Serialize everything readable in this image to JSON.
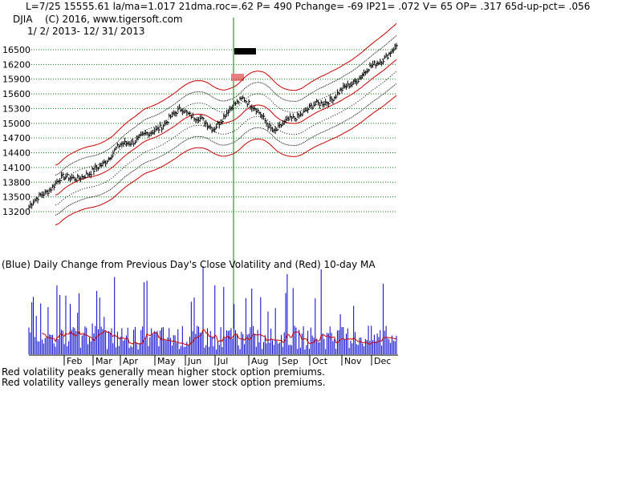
{
  "header": {
    "stats_line": "L=7/25   15555.61   la/ma=1.017  21dma.roc=.62  P=   490  Pchange=  -69  IP21=  .072  V=  65  OP=  .317  65d-up-pct=  .056",
    "symbol": "DJIA",
    "copyright": "(C) 2016,  www.tigersoft.com",
    "date_range": "1/ 2/ 2013-  12/ 31/ 2013"
  },
  "volatility_panel": {
    "title": "(Blue) Daily Change from Previous Day's Close Volatility and (Red) 10-day MA"
  },
  "notes": {
    "line1": "Red volatility peaks generally mean higher stock option premiums.",
    "line2": "Red volatility valleys generally mean lower stock option premiums."
  },
  "colors": {
    "price_bars": "#000000",
    "bands_outer": "#cc0000",
    "bands_inner": "#000000",
    "gridlines": "#008000",
    "signal_line": "#008000",
    "volatility_bars": "#0000cc",
    "volatility_ma": "#cc0000"
  },
  "chart_data": [
    {
      "type": "bar",
      "subtype": "ohlc-price",
      "title": "DJIA",
      "y_ticks": [
        13200,
        13500,
        13800,
        14100,
        14400,
        14700,
        15000,
        15300,
        15600,
        15900,
        16200,
        16500
      ],
      "ylim": [
        13000,
        16650
      ],
      "grid": true,
      "x_months": [
        "Feb",
        "Mar",
        "Apr",
        "May",
        "Jun",
        "Jul",
        "Aug",
        "Sep",
        "Oct",
        "Nov",
        "Dec"
      ],
      "signal_date": "7/25",
      "signal_value": 15555.61,
      "closes_approx": [
        {
          "month": "Jan-start",
          "value": 13300
        },
        {
          "month": "Jan-end",
          "value": 13860
        },
        {
          "month": "Feb",
          "value": 13950
        },
        {
          "month": "Mar",
          "value": 14550
        },
        {
          "month": "Apr",
          "value": 14800
        },
        {
          "month": "May",
          "value": 15300
        },
        {
          "month": "Jun",
          "value": 14900
        },
        {
          "month": "Jul",
          "value": 15550
        },
        {
          "month": "Aug",
          "value": 14850
        },
        {
          "month": "Sep",
          "value": 15250
        },
        {
          "month": "Oct",
          "value": 15550
        },
        {
          "month": "Nov",
          "value": 16050
        },
        {
          "month": "Dec-end",
          "value": 16550
        }
      ]
    },
    {
      "type": "bar",
      "subtype": "volatility",
      "series": [
        {
          "name": "Daily Change from Previous Day's Close Volatility"
        },
        {
          "name": "10-day MA"
        }
      ]
    }
  ]
}
